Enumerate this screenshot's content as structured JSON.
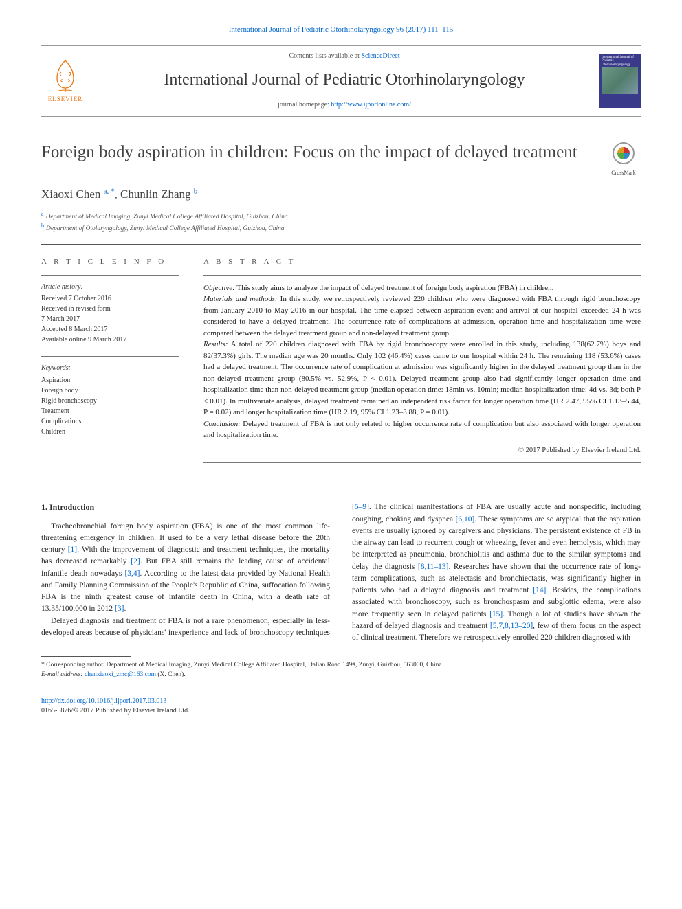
{
  "journal_ref": "International Journal of Pediatric Otorhinolaryngology 96 (2017) 111–115",
  "masthead": {
    "contents_pre": "Contents lists available at ",
    "contents_link": "ScienceDirect",
    "journal_name": "International Journal of Pediatric Otorhinolaryngology",
    "homepage_pre": "journal homepage: ",
    "homepage_link": "http://www.ijporlonline.com/",
    "elsevier_label": "ELSEVIER",
    "cover_title": "International Journal of Pediatric Otorhinolaryngology",
    "elsevier_color": "#e8750f",
    "cover_bg": "#3a3a8a"
  },
  "title": "Foreign body aspiration in children: Focus on the impact of delayed treatment",
  "crossmark": "CrossMark",
  "authors_html": "Xiaoxi Chen <a data-name='author-aff-a' data-interactable='true'>a</a><a data-name='author-corresp' data-interactable='true'>, *</a>, Chunlin Zhang <a data-name='author-aff-b' data-interactable='true'>b</a>",
  "affiliations": {
    "a": "Department of Medical Imaging, Zunyi Medical College Affiliated Hospital, Guizhou, China",
    "b": "Department of Otolaryngology, Zunyi Medical College Affiliated Hospital, Guizhou, China"
  },
  "info": {
    "section_label": "A R T I C L E  I N F O",
    "history_label": "Article history:",
    "history": "Received 7 October 2016\nReceived in revised form\n7 March 2017\nAccepted 8 March 2017\nAvailable online 9 March 2017",
    "keywords_label": "Keywords:",
    "keywords": "Aspiration\nForeign body\nRigid bronchoscopy\nTreatment\nComplications\nChildren"
  },
  "abstract": {
    "section_label": "A B S T R A C T",
    "objective_lead": "Objective:",
    "objective": " This study aims to analyze the impact of delayed treatment of foreign body aspiration (FBA) in children.",
    "methods_lead": "Materials and methods:",
    "methods": " In this study, we retrospectively reviewed 220 children who were diagnosed with FBA through rigid bronchoscopy from January 2010 to May 2016 in our hospital. The time elapsed between aspiration event and arrival at our hospital exceeded 24 h was considered to have a delayed treatment. The occurrence rate of complications at admission, operation time and hospitalization time were compared between the delayed treatment group and non-delayed treatment group.",
    "results_lead": "Results:",
    "results": " A total of 220 children diagnosed with FBA by rigid bronchoscopy were enrolled in this study, including 138(62.7%) boys and 82(37.3%) girls. The median age was 20 months. Only 102 (46.4%) cases came to our hospital within 24 h. The remaining 118 (53.6%) cases had a delayed treatment. The occurrence rate of complication at admission was significantly higher in the delayed treatment group than in the non-delayed treatment group (80.5% vs. 52.9%, P < 0.01). Delayed treatment group also had significantly longer operation time and hospitalization time than non-delayed treatment group (median operation time: 18min vs. 10min; median hospitalization time: 4d vs. 3d; both P < 0.01). In multivariate analysis, delayed treatment remained an independent risk factor for longer operation time (HR 2.47, 95% CI 1.13–5.44, P = 0.02) and longer hospitalization time (HR 2.19, 95% CI 1.23–3.88, P = 0.01).",
    "conclusion_lead": "Conclusion:",
    "conclusion": " Delayed treatment of FBA is not only related to higher occurrence rate of complication but also associated with longer operation and hospitalization time.",
    "copyright": "© 2017 Published by Elsevier Ireland Ltd."
  },
  "body": {
    "heading": "1. Introduction",
    "p1_pre": "Tracheobronchial foreign body aspiration (FBA) is one of the most common life-threatening emergency in children. It used to be a very lethal disease before the 20th century ",
    "ref1": "[1]",
    "p1_mid1": ". With the improvement of diagnostic and treatment techniques, the mortality has decreased remarkably ",
    "ref2": "[2]",
    "p1_mid2": ". But FBA still remains the leading cause of accidental infantile death nowadays ",
    "ref34": "[3,4]",
    "p1_mid3": ". According to the latest data provided by National Health and Family Planning Commission of the People's Republic of China, suffocation following FBA is the ninth greatest cause of infantile death in China, with a death rate of 13.35/100,000 in 2012 ",
    "ref3": "[3]",
    "p1_end": ".",
    "p2_pre": "Delayed diagnosis and treatment of FBA is not a rare ",
    "p2_col2a": "phenomenon, especially in less-developed areas because of physicians' inexperience and lack of bronchoscopy techniques ",
    "ref59": "[5–9]",
    "p2_col2b": ". The clinical manifestations of FBA are usually acute and nonspecific, including coughing, choking and dyspnea ",
    "ref610": "[6,10]",
    "p2_col2c": ". These symptoms are so atypical that the aspiration events are usually ignored by caregivers and physicians. The persistent existence of FB in the airway can lead to recurrent cough or wheezing, fever and even hemolysis, which may be interpreted as pneumonia, bronchiolitis and asthma due to the similar symptoms and delay the diagnosis ",
    "ref81113": "[8,11–13]",
    "p2_col2d": ". Researches have shown that the occurrence rate of long-term complications, such as atelectasis and bronchiectasis, was significantly higher in patients who had a delayed diagnosis and treatment ",
    "ref14": "[14]",
    "p2_col2e": ". Besides, the complications associated with bronchoscopy, such as bronchospasm and subglottic edema, were also more frequently seen in delayed patients ",
    "ref15": "[15]",
    "p2_col2f": ". Though a lot of studies have shown the hazard of delayed diagnosis and treatment ",
    "ref578": "[5,7,8,13–20]",
    "p2_col2g": ", few of them focus on the aspect of clinical treatment. Therefore we retrospectively enrolled 220 children diagnosed with"
  },
  "footnote": {
    "corresp": "* Corresponding author. Department of Medical Imaging, Zunyi Medical College Affiliated Hospital, Dalian Road 149#, Zunyi, Guizhou, 563000, China.",
    "email_label": "E-mail address: ",
    "email": "chenxiaoxi_zmc@163.com",
    "email_post": " (X. Chen)."
  },
  "footer": {
    "doi": "http://dx.doi.org/10.1016/j.ijporl.2017.03.013",
    "issn": "0165-5876/© 2017 Published by Elsevier Ireland Ltd."
  },
  "colors": {
    "link": "#0066cc",
    "text": "#2a2a2a"
  }
}
